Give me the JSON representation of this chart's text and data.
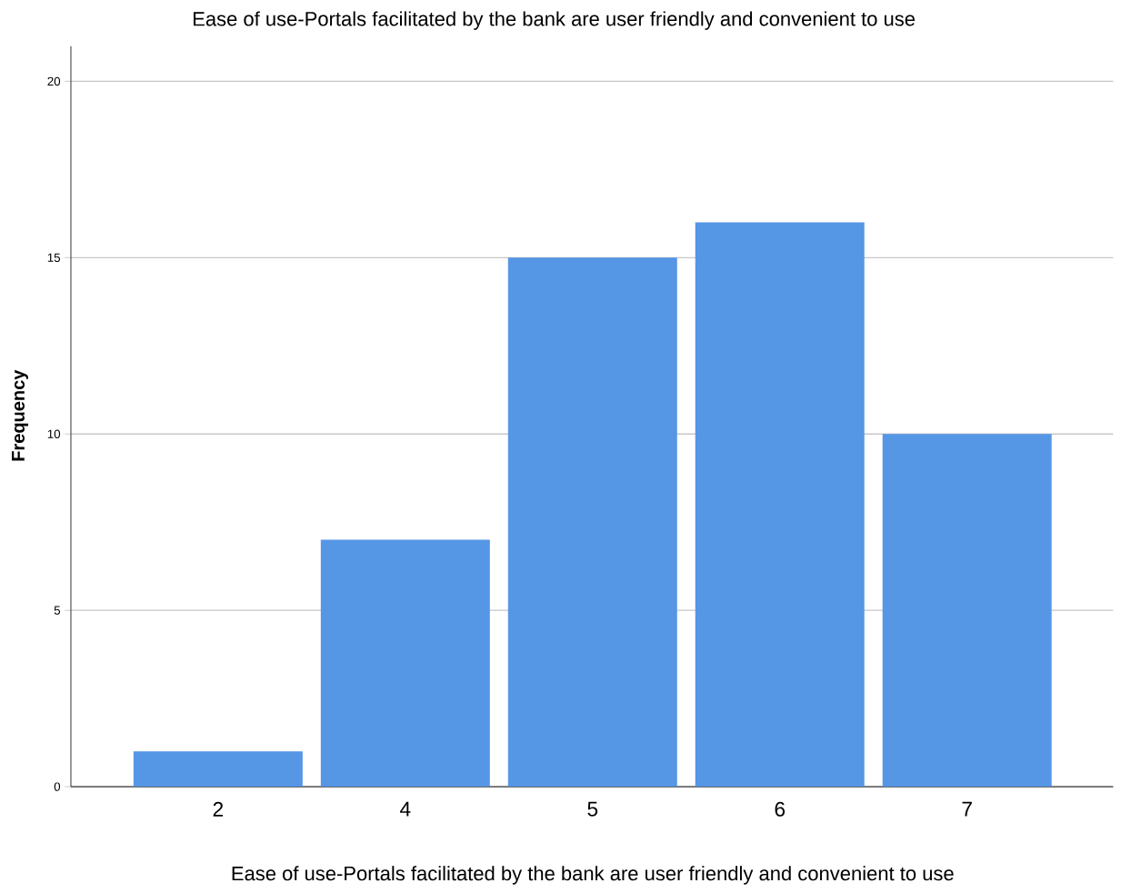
{
  "chart_data": {
    "type": "bar",
    "title": "Ease of use-Portals facilitated by the bank are user friendly and convenient to use",
    "xlabel": "Ease of use-Portals facilitated by the bank are user friendly and convenient to use",
    "ylabel": "Frequency",
    "categories": [
      "2",
      "4",
      "5",
      "6",
      "7"
    ],
    "values": [
      1,
      7,
      15,
      16,
      10
    ],
    "color": "#5596e5",
    "ylim": [
      0,
      21
    ],
    "yticks": [
      0,
      5,
      10,
      15,
      20
    ],
    "grid": "y"
  }
}
